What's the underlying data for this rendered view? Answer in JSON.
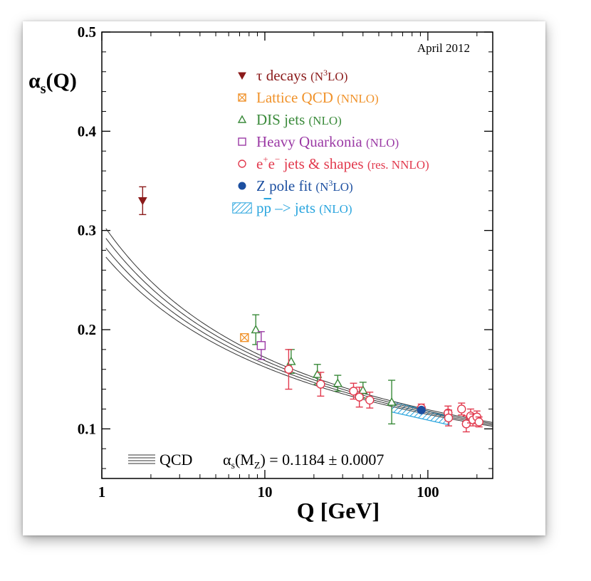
{
  "chart_data": {
    "type": "scatter",
    "date_note": "April 2012",
    "ylabel_main": "α",
    "ylabel_sub": "s",
    "ylabel_tail": "(Q)",
    "xlabel": "Q [GeV]",
    "x_scale": "log",
    "xlim": [
      1,
      250
    ],
    "ylim": [
      0.05,
      0.5
    ],
    "x_ticks": [
      1,
      10,
      100
    ],
    "x_tick_labels": [
      "1",
      "10",
      "100"
    ],
    "y_ticks": [
      0.1,
      0.2,
      0.3,
      0.4,
      0.5
    ],
    "y_tick_labels": [
      "0.1",
      "0.2",
      "0.3",
      "0.4",
      "0.5"
    ],
    "grid": false,
    "legend_position": "top-center",
    "legend": [
      {
        "key": "tau",
        "marker": "filled-triangle-down",
        "color": "#8b1a1a",
        "label": "τ decays",
        "order_pre": "(N",
        "order_sup": "3",
        "order_post": "LO)"
      },
      {
        "key": "lattice",
        "marker": "crossed-square",
        "color": "#f0922a",
        "label": "Lattice QCD",
        "order_pre": "(NNLO)",
        "order_sup": "",
        "order_post": ""
      },
      {
        "key": "dis",
        "marker": "open-triangle",
        "color": "#3a8a3a",
        "label": "DIS jets",
        "order_pre": "(NLO)",
        "order_sup": "",
        "order_post": ""
      },
      {
        "key": "quarkonia",
        "marker": "open-square",
        "color": "#9b3aa5",
        "label": "Heavy Quarkonia",
        "order_pre": "(NLO)",
        "order_sup": "",
        "order_post": ""
      },
      {
        "key": "ee",
        "marker": "open-circle",
        "color": "#e23a4e",
        "label_pre": "e",
        "label_sup1": "+",
        "label_mid": "e",
        "label_sup2": "−",
        "label_post": " jets & shapes",
        "order_pre": "(res. NNLO)",
        "order_sup": "",
        "order_post": ""
      },
      {
        "key": "zpole",
        "marker": "filled-circle",
        "color": "#1c4fa0",
        "label": "Z pole fit",
        "order_pre": "(N",
        "order_sup": "3",
        "order_post": "LO)"
      },
      {
        "key": "ppbar",
        "marker": "hatched-box",
        "color": "#2aa5de",
        "label_pre": "p",
        "label_bar": "p",
        "label_post": " –> jets",
        "order_pre": "(NLO)",
        "order_sup": "",
        "order_post": ""
      }
    ],
    "curve": {
      "label": "QCD",
      "formula_alpha": "α",
      "formula_sub": "s",
      "formula_arg_pre": "(M",
      "formula_arg_sub": "Z",
      "formula_rest": ") = 0.1184 ± 0.0007",
      "alpha_mz": 0.1184,
      "uncertainty": 0.0007
    },
    "series": [
      {
        "name": "τ decays",
        "key": "tau",
        "points": [
          {
            "x": 1.78,
            "y": 0.33,
            "err": 0.014
          }
        ]
      },
      {
        "name": "Lattice QCD",
        "key": "lattice",
        "points": [
          {
            "x": 7.5,
            "y": 0.192,
            "err": 0.003
          }
        ]
      },
      {
        "name": "DIS jets",
        "key": "dis",
        "points": [
          {
            "x": 8.8,
            "y": 0.2,
            "err": 0.015
          },
          {
            "x": 14.5,
            "y": 0.168,
            "err": 0.012
          },
          {
            "x": 21.0,
            "y": 0.155,
            "err": 0.01
          },
          {
            "x": 28.0,
            "y": 0.146,
            "err": 0.008
          },
          {
            "x": 40.0,
            "y": 0.139,
            "err": 0.008
          },
          {
            "x": 60.0,
            "y": 0.127,
            "err": 0.022
          }
        ]
      },
      {
        "name": "Heavy Quarkonia",
        "key": "quarkonia",
        "points": [
          {
            "x": 9.5,
            "y": 0.184,
            "err": 0.014
          }
        ]
      },
      {
        "name": "e+e− jets & shapes",
        "key": "ee",
        "points": [
          {
            "x": 14.0,
            "y": 0.16,
            "err": 0.02
          },
          {
            "x": 22.0,
            "y": 0.145,
            "err": 0.012
          },
          {
            "x": 35.0,
            "y": 0.138,
            "err": 0.008
          },
          {
            "x": 38.0,
            "y": 0.132,
            "err": 0.01
          },
          {
            "x": 44.0,
            "y": 0.129,
            "err": 0.008
          },
          {
            "x": 91.2,
            "y": 0.121,
            "err": 0.004
          },
          {
            "x": 133.0,
            "y": 0.116,
            "err": 0.007
          },
          {
            "x": 134.0,
            "y": 0.111,
            "err": 0.008
          },
          {
            "x": 161.0,
            "y": 0.12,
            "err": 0.006
          },
          {
            "x": 172.0,
            "y": 0.105,
            "err": 0.008
          },
          {
            "x": 183.0,
            "y": 0.113,
            "err": 0.007
          },
          {
            "x": 189.0,
            "y": 0.109,
            "err": 0.006
          },
          {
            "x": 200.0,
            "y": 0.112,
            "err": 0.006
          },
          {
            "x": 206.0,
            "y": 0.107,
            "err": 0.005
          }
        ]
      },
      {
        "name": "Z pole fit",
        "key": "zpole",
        "points": [
          {
            "x": 91.2,
            "y": 0.119,
            "err": 0.002
          }
        ]
      },
      {
        "name": "pp̄ –> jets",
        "key": "ppbar",
        "band": {
          "x_from": 60,
          "x_to": 135,
          "y_upper_start": 0.128,
          "y_lower_start": 0.117,
          "y_upper_end": 0.112,
          "y_lower_end": 0.104
        }
      }
    ]
  }
}
